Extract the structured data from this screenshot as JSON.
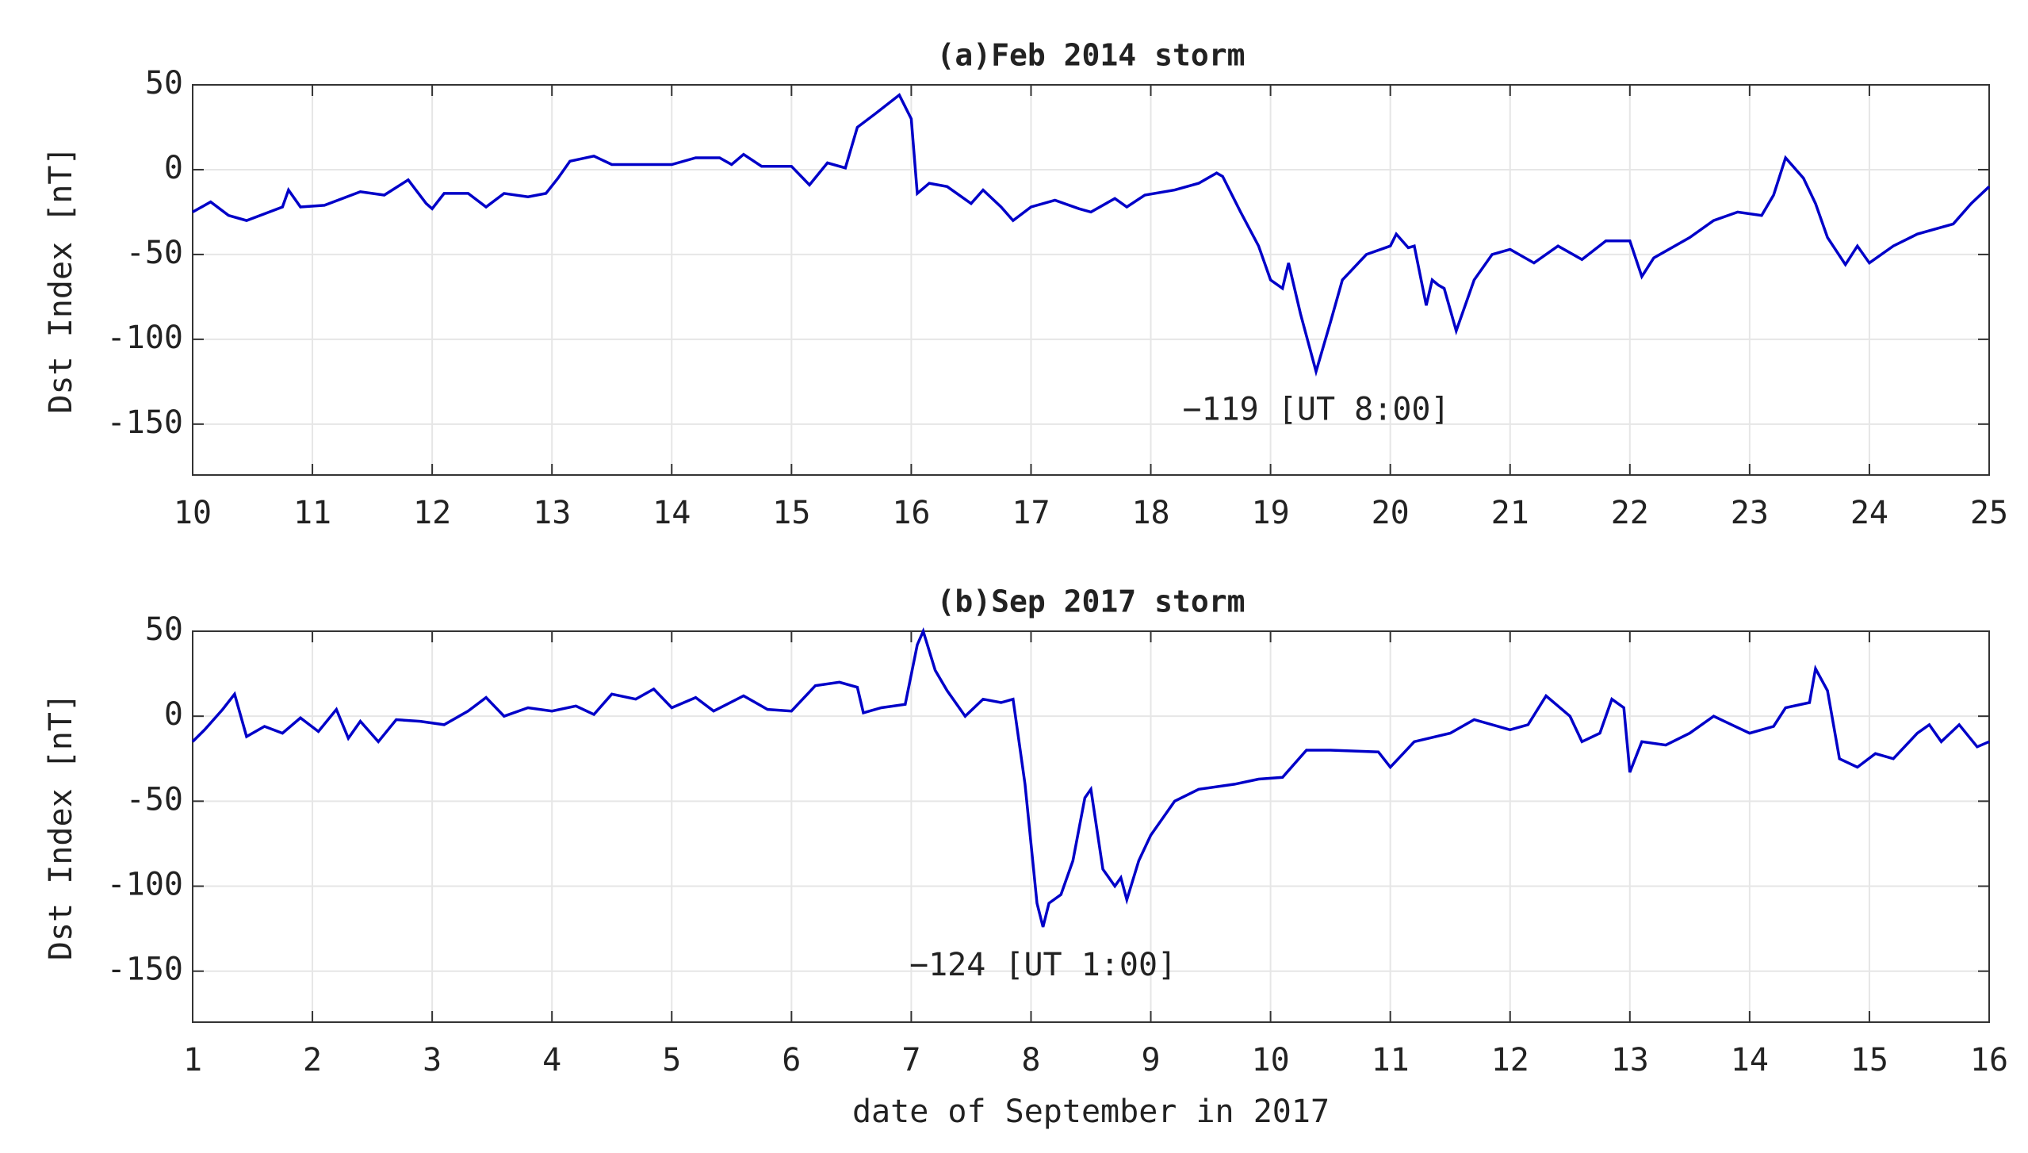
{
  "chart_data": [
    {
      "type": "line",
      "title": "(a)Feb 2014 storm",
      "ylabel": "Dst Index [nT]",
      "annotation": "−119 [UT 8:00]",
      "x": [
        10.0,
        10.15,
        10.3,
        10.45,
        10.6,
        10.75,
        10.8,
        10.9,
        11.1,
        11.4,
        11.6,
        11.8,
        11.95,
        12.0,
        12.1,
        12.3,
        12.45,
        12.6,
        12.8,
        12.95,
        13.05,
        13.15,
        13.35,
        13.5,
        13.8,
        14.0,
        14.2,
        14.4,
        14.5,
        14.6,
        14.75,
        15.0,
        15.15,
        15.3,
        15.45,
        15.55,
        15.7,
        15.9,
        16.0,
        16.05,
        16.15,
        16.3,
        16.5,
        16.6,
        16.75,
        16.85,
        17.0,
        17.2,
        17.4,
        17.5,
        17.7,
        17.8,
        17.95,
        18.2,
        18.4,
        18.55,
        18.6,
        18.75,
        18.9,
        19.0,
        19.1,
        19.15,
        19.25,
        19.38,
        19.5,
        19.6,
        19.8,
        20.0,
        20.05,
        20.15,
        20.2,
        20.3,
        20.35,
        20.4,
        20.45,
        20.55,
        20.7,
        20.85,
        21.0,
        21.2,
        21.4,
        21.6,
        21.8,
        22.0,
        22.1,
        22.2,
        22.5,
        22.7,
        22.9,
        23.1,
        23.2,
        23.3,
        23.45,
        23.55,
        23.65,
        23.8,
        23.9,
        24.0,
        24.2,
        24.4,
        24.7,
        24.85,
        25.0
      ],
      "series": [
        {
          "color": "#0000c8",
          "values": [
            -25,
            -19,
            -27,
            -30,
            -26,
            -22,
            -12,
            -22,
            -21,
            -13,
            -15,
            -6,
            -20,
            -23,
            -14,
            -14,
            -22,
            -14,
            -16,
            -14,
            -5,
            5,
            8,
            3,
            3,
            3,
            7,
            7,
            3,
            9,
            2,
            2,
            -9,
            4,
            1,
            25,
            33,
            44,
            30,
            -14,
            -8,
            -10,
            -20,
            -12,
            -22,
            -30,
            -22,
            -18,
            -23,
            -25,
            -17,
            -22,
            -15,
            -12,
            -8,
            -2,
            -4,
            -25,
            -45,
            -65,
            -70,
            -55,
            -85,
            -119,
            -90,
            -65,
            -50,
            -45,
            -38,
            -46,
            -45,
            -80,
            -65,
            -68,
            -70,
            -95,
            -65,
            -50,
            -47,
            -55,
            -45,
            -53,
            -42,
            -42,
            -63,
            -52,
            -40,
            -30,
            -25,
            -27,
            -15,
            7,
            -5,
            -20,
            -40,
            -56,
            -45,
            -55,
            -45,
            -38,
            -32,
            -20,
            -10
          ]
        }
      ],
      "xlim": [
        10,
        25
      ],
      "xticks": [
        10,
        11,
        12,
        13,
        14,
        15,
        16,
        17,
        18,
        19,
        20,
        21,
        22,
        23,
        24,
        25
      ],
      "ylim": [
        -180,
        50
      ],
      "yticks": [
        50,
        0,
        -50,
        -100,
        -150
      ],
      "grid": true
    },
    {
      "type": "line",
      "title": "(b)Sep 2017 storm",
      "ylabel": "Dst Index [nT]",
      "xlabel": "date of September in 2017",
      "annotation": "−124 [UT 1:00]",
      "x": [
        1.0,
        1.1,
        1.25,
        1.35,
        1.45,
        1.6,
        1.75,
        1.9,
        2.05,
        2.2,
        2.3,
        2.4,
        2.55,
        2.7,
        2.9,
        3.1,
        3.3,
        3.45,
        3.6,
        3.8,
        4.0,
        4.2,
        4.35,
        4.5,
        4.7,
        4.85,
        5.0,
        5.2,
        5.35,
        5.6,
        5.8,
        6.0,
        6.2,
        6.4,
        6.55,
        6.6,
        6.75,
        6.95,
        7.05,
        7.1,
        7.2,
        7.3,
        7.45,
        7.6,
        7.75,
        7.85,
        7.95,
        8.05,
        8.1,
        8.15,
        8.25,
        8.35,
        8.45,
        8.5,
        8.6,
        8.7,
        8.75,
        8.8,
        8.9,
        9.0,
        9.2,
        9.4,
        9.7,
        9.9,
        10.1,
        10.3,
        10.5,
        10.9,
        11.0,
        11.2,
        11.5,
        11.7,
        12.0,
        12.15,
        12.3,
        12.5,
        12.6,
        12.75,
        12.85,
        12.95,
        13.0,
        13.1,
        13.3,
        13.5,
        13.7,
        13.85,
        14.0,
        14.2,
        14.3,
        14.5,
        14.55,
        14.65,
        14.75,
        14.9,
        15.05,
        15.2,
        15.4,
        15.5,
        15.6,
        15.75,
        15.9,
        16.0
      ],
      "series": [
        {
          "color": "#0000c8",
          "values": [
            -15,
            -8,
            4,
            13,
            -12,
            -6,
            -10,
            -1,
            -9,
            4,
            -13,
            -3,
            -15,
            -2,
            -3,
            -5,
            3,
            11,
            0,
            5,
            3,
            6,
            1,
            13,
            10,
            16,
            5,
            11,
            3,
            12,
            4,
            3,
            18,
            20,
            17,
            2,
            5,
            7,
            42,
            50,
            27,
            15,
            0,
            10,
            8,
            10,
            -40,
            -110,
            -124,
            -110,
            -105,
            -85,
            -48,
            -43,
            -90,
            -100,
            -95,
            -108,
            -85,
            -70,
            -50,
            -43,
            -40,
            -37,
            -36,
            -20,
            -20,
            -21,
            -30,
            -15,
            -10,
            -2,
            -8,
            -5,
            12,
            0,
            -15,
            -10,
            10,
            5,
            -33,
            -15,
            -17,
            -10,
            0,
            -5,
            -10,
            -6,
            5,
            8,
            28,
            15,
            -25,
            -30,
            -22,
            -25,
            -10,
            -5,
            -15,
            -5,
            -18,
            -15
          ]
        }
      ],
      "xlim": [
        1,
        16
      ],
      "xticks": [
        1,
        2,
        3,
        4,
        5,
        6,
        7,
        8,
        9,
        10,
        11,
        12,
        13,
        14,
        15,
        16
      ],
      "ylim": [
        -180,
        50
      ],
      "yticks": [
        50,
        0,
        -50,
        -100,
        -150
      ],
      "grid": true
    }
  ]
}
